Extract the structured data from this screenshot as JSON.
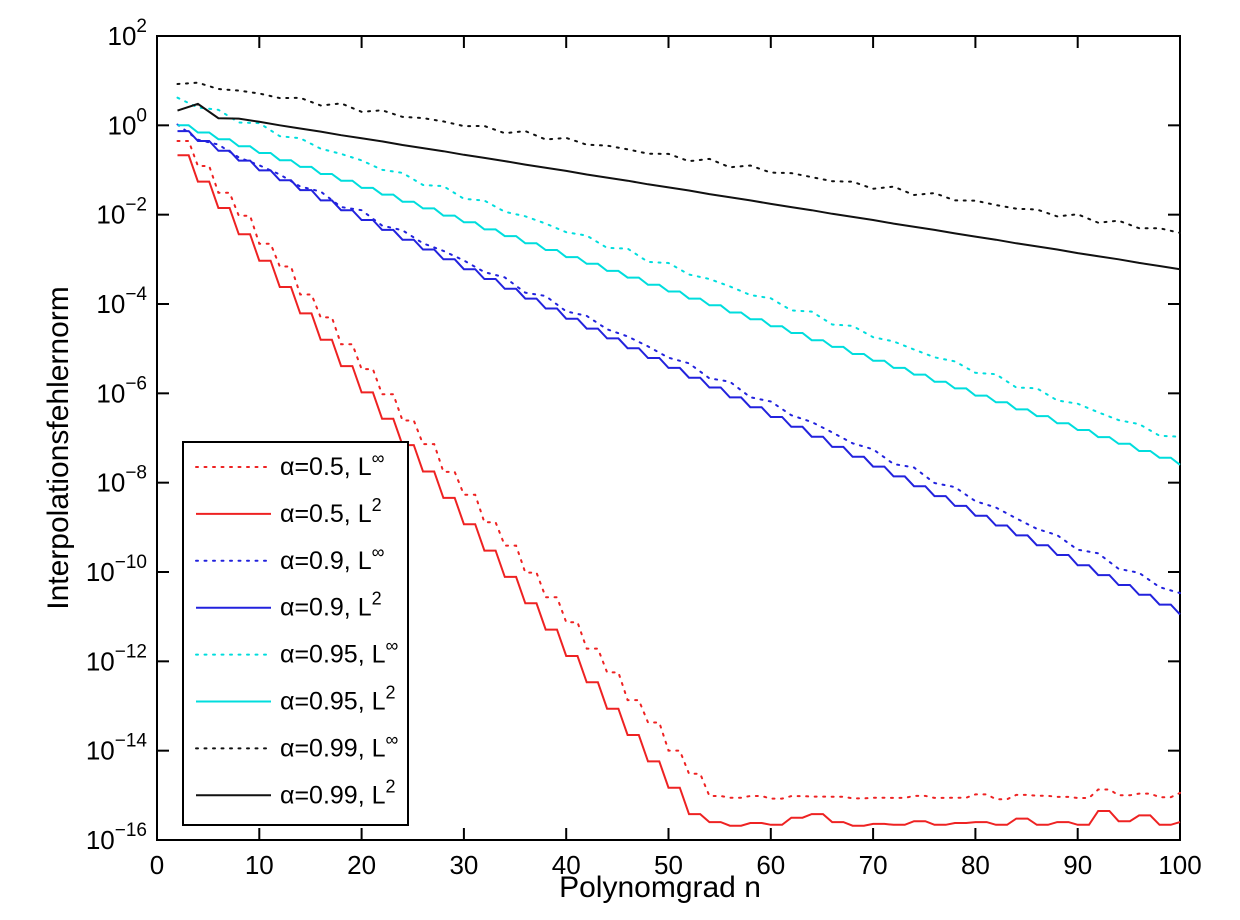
{
  "figure": {
    "background": "#ffffff",
    "axis_color": "#000000"
  },
  "chart_data": {
    "type": "line",
    "title": "",
    "xlabel": "Polynomgrad n",
    "ylabel": "Interpolationsfehlernorm",
    "x_axis": {
      "range": [
        0,
        100
      ],
      "ticks": [
        0,
        10,
        20,
        30,
        40,
        50,
        60,
        70,
        80,
        90,
        100
      ]
    },
    "y_axis": {
      "scale": "log10",
      "exponent_range": [
        2,
        -16
      ],
      "tick_exponents": [
        2,
        0,
        -2,
        -4,
        -6,
        -8,
        -10,
        -12,
        -14,
        -16
      ],
      "tick_label_base": "10"
    },
    "grid": false,
    "legend_position": "lower-left-inside",
    "x": [
      2,
      4,
      6,
      8,
      10,
      12,
      14,
      16,
      18,
      20,
      22,
      24,
      26,
      28,
      30,
      32,
      34,
      36,
      38,
      40,
      42,
      44,
      46,
      48,
      50,
      52,
      54,
      56,
      58,
      60,
      62,
      64,
      66,
      68,
      70,
      72,
      74,
      76,
      78,
      80,
      82,
      84,
      86,
      88,
      90,
      92,
      94,
      96,
      98,
      100
    ],
    "series": [
      {
        "name": "alpha-0.5-linf",
        "label_base": "α=0.5, L",
        "label_sup": "∞",
        "color": "#ee2222",
        "line_style": "dotted",
        "staircase": true,
        "jitter": 0.03,
        "log10_values": [
          -0.35,
          -0.92,
          -1.49,
          -2.05,
          -2.62,
          -3.19,
          -3.76,
          -4.32,
          -4.89,
          -5.46,
          -6.03,
          -6.59,
          -7.16,
          -7.73,
          -8.3,
          -8.86,
          -9.43,
          -10.0,
          -10.57,
          -11.13,
          -11.7,
          -12.27,
          -12.84,
          -13.4,
          -13.97,
          -14.54,
          -15.0,
          -15.06,
          -15.02,
          -15.06,
          -15.04,
          -15.0,
          -15.06,
          -15.04,
          -15.08,
          -15.04,
          -15.02,
          -15.06,
          -15.04,
          -15.0,
          -15.06,
          -15.02,
          -14.98,
          -15.06,
          -15.04,
          -14.88,
          -15.0,
          -14.95,
          -15.06,
          -14.92
        ]
      },
      {
        "name": "alpha-0.5-l2",
        "label_base": "α=0.5, L",
        "label_sup": "2",
        "color": "#ee2222",
        "line_style": "solid",
        "staircase": true,
        "jitter": 0,
        "log10_values": [
          -0.67,
          -1.26,
          -1.85,
          -2.44,
          -3.03,
          -3.62,
          -4.21,
          -4.8,
          -5.39,
          -5.98,
          -6.57,
          -7.16,
          -7.75,
          -8.34,
          -8.93,
          -9.52,
          -10.11,
          -10.7,
          -11.29,
          -11.88,
          -12.47,
          -13.06,
          -13.65,
          -14.24,
          -14.83,
          -15.42,
          -15.6,
          -15.68,
          -15.62,
          -15.66,
          -15.5,
          -15.42,
          -15.6,
          -15.68,
          -15.64,
          -15.66,
          -15.58,
          -15.66,
          -15.62,
          -15.6,
          -15.66,
          -15.52,
          -15.66,
          -15.6,
          -15.66,
          -15.35,
          -15.58,
          -15.45,
          -15.66,
          -15.6
        ]
      },
      {
        "name": "alpha-0.9-linf",
        "label_base": "α=0.9, L",
        "label_sup": "∞",
        "color": "#2222dd",
        "line_style": "dotted",
        "staircase": false,
        "jitter": 0.07,
        "log10_values": [
          -0.05,
          -0.26,
          -0.48,
          -0.69,
          -0.9,
          -1.12,
          -1.33,
          -1.54,
          -1.76,
          -1.97,
          -2.18,
          -2.4,
          -2.61,
          -2.82,
          -3.04,
          -3.25,
          -3.46,
          -3.68,
          -3.89,
          -4.1,
          -4.32,
          -4.53,
          -4.74,
          -4.96,
          -5.17,
          -5.38,
          -5.6,
          -5.81,
          -6.02,
          -6.24,
          -6.45,
          -6.66,
          -6.88,
          -7.09,
          -7.3,
          -7.52,
          -7.73,
          -7.94,
          -8.16,
          -8.37,
          -8.58,
          -8.8,
          -9.01,
          -9.22,
          -9.44,
          -9.65,
          -9.86,
          -10.08,
          -10.29,
          -10.5
        ]
      },
      {
        "name": "alpha-0.9-l2",
        "label_base": "α=0.9, L",
        "label_sup": "2",
        "color": "#2222dd",
        "line_style": "solid",
        "staircase": true,
        "jitter": 0,
        "log10_values": [
          -0.13,
          -0.35,
          -0.57,
          -0.79,
          -1.01,
          -1.23,
          -1.45,
          -1.68,
          -1.9,
          -2.12,
          -2.34,
          -2.56,
          -2.78,
          -3.0,
          -3.22,
          -3.44,
          -3.66,
          -3.88,
          -4.1,
          -4.33,
          -4.55,
          -4.77,
          -4.99,
          -5.21,
          -5.43,
          -5.65,
          -5.87,
          -6.09,
          -6.31,
          -6.53,
          -6.75,
          -6.97,
          -7.2,
          -7.42,
          -7.64,
          -7.86,
          -8.08,
          -8.3,
          -8.52,
          -8.74,
          -8.96,
          -9.18,
          -9.4,
          -9.62,
          -9.85,
          -10.07,
          -10.29,
          -10.51,
          -10.73,
          -10.95
        ]
      },
      {
        "name": "alpha-0.95-linf",
        "label_base": "α=0.95, L",
        "label_sup": "∞",
        "color": "#00dddd",
        "line_style": "dotted",
        "staircase": false,
        "jitter": 0.07,
        "log10_values": [
          0.6,
          0.44,
          0.29,
          0.13,
          -0.02,
          -0.18,
          -0.34,
          -0.49,
          -0.65,
          -0.8,
          -0.96,
          -1.12,
          -1.27,
          -1.43,
          -1.58,
          -1.74,
          -1.9,
          -2.05,
          -2.21,
          -2.36,
          -2.52,
          -2.68,
          -2.83,
          -2.99,
          -3.14,
          -3.3,
          -3.46,
          -3.61,
          -3.77,
          -3.92,
          -4.08,
          -4.24,
          -4.39,
          -4.55,
          -4.7,
          -4.86,
          -5.02,
          -5.17,
          -5.33,
          -5.48,
          -5.64,
          -5.8,
          -5.95,
          -6.11,
          -6.26,
          -6.42,
          -6.58,
          -6.73,
          -6.89,
          -7.04
        ]
      },
      {
        "name": "alpha-0.95-l2",
        "label_base": "α=0.95, L",
        "label_sup": "2",
        "color": "#00dddd",
        "line_style": "solid",
        "staircase": true,
        "jitter": 0,
        "log10_values": [
          0.0,
          -0.16,
          -0.31,
          -0.47,
          -0.62,
          -0.78,
          -0.93,
          -1.09,
          -1.24,
          -1.4,
          -1.55,
          -1.71,
          -1.86,
          -2.02,
          -2.17,
          -2.33,
          -2.48,
          -2.64,
          -2.79,
          -2.95,
          -3.1,
          -3.26,
          -3.41,
          -3.57,
          -3.72,
          -3.88,
          -4.03,
          -4.19,
          -4.34,
          -4.5,
          -4.65,
          -4.81,
          -4.96,
          -5.12,
          -5.27,
          -5.43,
          -5.58,
          -5.74,
          -5.89,
          -6.05,
          -6.2,
          -6.36,
          -6.51,
          -6.67,
          -6.82,
          -6.98,
          -7.13,
          -7.29,
          -7.44,
          -7.6
        ]
      },
      {
        "name": "alpha-0.99-linf",
        "label_base": "α=0.99, L",
        "label_sup": "∞",
        "color": "#111111",
        "line_style": "dotted",
        "staircase": false,
        "jitter": 0.06,
        "log10_values": [
          0.98,
          0.91,
          0.84,
          0.77,
          0.7,
          0.64,
          0.57,
          0.5,
          0.43,
          0.36,
          0.29,
          0.22,
          0.15,
          0.08,
          0.01,
          -0.06,
          -0.12,
          -0.19,
          -0.26,
          -0.33,
          -0.4,
          -0.47,
          -0.54,
          -0.61,
          -0.68,
          -0.75,
          -0.81,
          -0.88,
          -0.95,
          -1.02,
          -1.09,
          -1.16,
          -1.23,
          -1.3,
          -1.37,
          -1.43,
          -1.5,
          -1.57,
          -1.64,
          -1.71,
          -1.78,
          -1.85,
          -1.92,
          -1.99,
          -2.05,
          -2.12,
          -2.19,
          -2.26,
          -2.33,
          -2.4
        ]
      },
      {
        "name": "alpha-0.99-l2",
        "label_base": "α=0.99, L",
        "label_sup": "2",
        "color": "#111111",
        "line_style": "solid",
        "staircase": false,
        "jitter": 0,
        "log10_values": [
          0.33,
          0.48,
          0.16,
          0.15,
          0.08,
          0.0,
          -0.07,
          -0.14,
          -0.22,
          -0.29,
          -0.36,
          -0.44,
          -0.51,
          -0.58,
          -0.66,
          -0.73,
          -0.8,
          -0.88,
          -0.95,
          -1.02,
          -1.1,
          -1.17,
          -1.24,
          -1.32,
          -1.39,
          -1.46,
          -1.54,
          -1.61,
          -1.68,
          -1.76,
          -1.83,
          -1.9,
          -1.98,
          -2.05,
          -2.12,
          -2.2,
          -2.27,
          -2.34,
          -2.42,
          -2.49,
          -2.56,
          -2.64,
          -2.71,
          -2.78,
          -2.86,
          -2.93,
          -3.0,
          -3.08,
          -3.15,
          -3.22
        ]
      }
    ]
  }
}
